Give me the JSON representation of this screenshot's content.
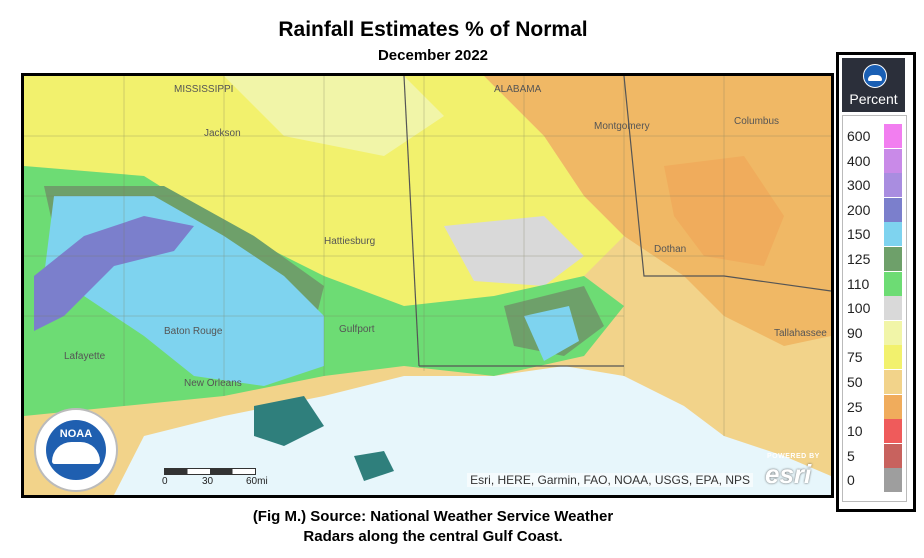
{
  "title": "Rainfall Estimates % of Normal",
  "subtitle": "December 2022",
  "caption_line1": "(Fig M.) Source: National Weather Service Weather",
  "caption_line2": "Radars along the central Gulf Coast.",
  "legend": {
    "header": "Percent",
    "entries": [
      {
        "label": "600",
        "color": "#f27ef0"
      },
      {
        "label": "400",
        "color": "#c98ae8"
      },
      {
        "label": "300",
        "color": "#a98de0"
      },
      {
        "label": "200",
        "color": "#7b7fcc"
      },
      {
        "label": "150",
        "color": "#7ed3ef"
      },
      {
        "label": "125",
        "color": "#6ea06a"
      },
      {
        "label": "110",
        "color": "#6ddc74"
      },
      {
        "label": "100",
        "color": "#d9d9d9"
      },
      {
        "label": "90",
        "color": "#f1f5a8"
      },
      {
        "label": "75",
        "color": "#f2f16d"
      },
      {
        "label": "50",
        "color": "#f2d38a"
      },
      {
        "label": "25",
        "color": "#f0ac5c"
      },
      {
        "label": "10",
        "color": "#ef5b5b"
      },
      {
        "label": "5",
        "color": "#c8625e"
      },
      {
        "label": "0",
        "color": "#9e9e9e"
      }
    ]
  },
  "map": {
    "attribution": "Esri, HERE, Garmin, FAO, NOAA, USGS, EPA, NPS",
    "esri_powered": "POWERED BY",
    "esri_name": "esri",
    "noaa_text": "NOAA",
    "scale_labels": [
      "0",
      "30",
      "60mi"
    ],
    "place_labels": [
      "MISSISSIPPI",
      "ALABAMA",
      "Montgomery",
      "Columbus",
      "Jackson",
      "Hattiesburg",
      "Baton Rouge",
      "Lafayette",
      "New Orleans",
      "Gulfport",
      "Dothan",
      "Tallahassee"
    ],
    "colors": {
      "water": "#dff4fb",
      "gulf": "#e7f6fb"
    }
  }
}
